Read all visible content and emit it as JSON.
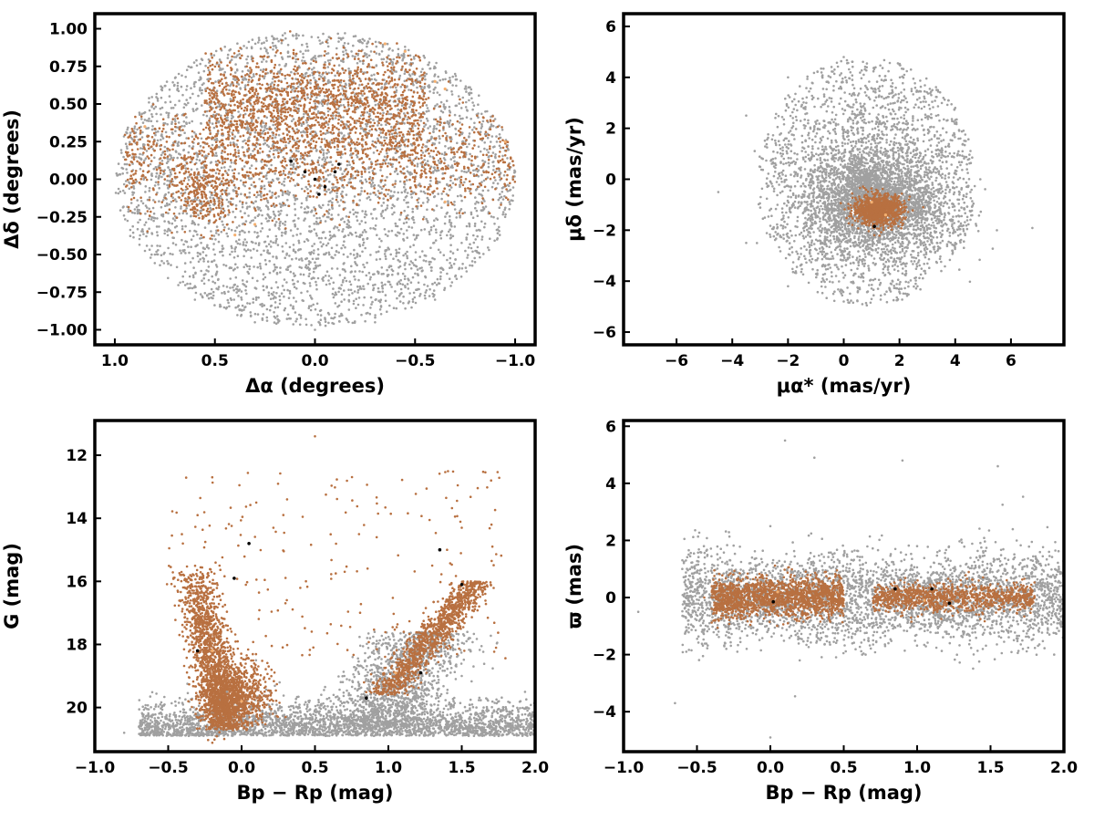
{
  "chart_data": [
    {
      "id": "sky-positions",
      "type": "scatter",
      "xlabel": "Δα (degrees)",
      "ylabel": "Δδ (degrees)",
      "xlim": [
        1.1,
        -1.1
      ],
      "ylim": [
        -1.1,
        1.1
      ],
      "x_ticks": [
        1.0,
        0.5,
        0.0,
        -0.5,
        -1.0
      ],
      "x_tick_labels": [
        "1.0",
        "0.5",
        "0.0",
        "−0.5",
        "−1.0"
      ],
      "y_ticks": [
        1.0,
        0.75,
        0.5,
        0.25,
        0.0,
        -0.25,
        -0.5,
        -0.75,
        -1.0
      ],
      "y_tick_labels": [
        "1.00",
        "0.75",
        "0.50",
        "0.25",
        "0.00",
        "−0.25",
        "−0.50",
        "−0.75",
        "−1.00"
      ],
      "grid": false,
      "legend": false,
      "series": [
        {
          "color": "#a0a0a0",
          "points": [
            [
              0.95,
              0.1
            ],
            [
              0.9,
              -0.2
            ],
            [
              0.8,
              -0.5
            ],
            [
              0.6,
              -0.8
            ],
            [
              0.3,
              -0.95
            ],
            [
              0.0,
              -1.0
            ],
            [
              -0.3,
              -0.95
            ],
            [
              -0.6,
              -0.8
            ],
            [
              -0.8,
              -0.55
            ],
            [
              -0.95,
              -0.25
            ],
            [
              -1.0,
              0.05
            ],
            [
              -0.9,
              0.4
            ],
            [
              -0.7,
              0.7
            ],
            [
              -0.45,
              0.88
            ],
            [
              -0.15,
              0.97
            ],
            [
              0.15,
              0.97
            ],
            [
              0.45,
              0.88
            ],
            [
              0.75,
              0.62
            ],
            [
              0.9,
              0.35
            ],
            [
              0.5,
              -0.5
            ],
            [
              0.2,
              -0.6
            ],
            [
              -0.2,
              -0.55
            ],
            [
              -0.5,
              -0.4
            ],
            [
              0.6,
              -0.3
            ],
            [
              -0.7,
              -0.2
            ],
            [
              0.1,
              -0.3
            ],
            [
              -0.3,
              -0.7
            ],
            [
              0.4,
              -0.7
            ],
            [
              0.7,
              0.4
            ],
            [
              -0.85,
              0.3
            ]
          ]
        },
        {
          "color": "#b87040",
          "points": [
            [
              0.85,
              0.2
            ],
            [
              0.7,
              0.25
            ],
            [
              0.6,
              0.1
            ],
            [
              0.55,
              -0.1
            ],
            [
              0.45,
              0.4
            ],
            [
              0.3,
              0.5
            ],
            [
              0.2,
              0.65
            ],
            [
              0.1,
              0.75
            ],
            [
              0.0,
              0.6
            ],
            [
              -0.1,
              0.45
            ],
            [
              -0.2,
              0.7
            ],
            [
              -0.3,
              0.55
            ],
            [
              -0.4,
              0.35
            ],
            [
              -0.5,
              0.2
            ],
            [
              -0.6,
              0.1
            ],
            [
              -0.7,
              0.0
            ],
            [
              -0.85,
              -0.05
            ],
            [
              -0.95,
              0.05
            ],
            [
              0.25,
              0.3
            ],
            [
              0.1,
              0.15
            ],
            [
              -0.15,
              0.2
            ],
            [
              -0.25,
              0.05
            ],
            [
              0.35,
              -0.3
            ],
            [
              0.65,
              -0.35
            ],
            [
              0.5,
              0.2
            ],
            [
              -0.05,
              0.85
            ]
          ]
        },
        {
          "color": "#f5b070",
          "points": [
            [
              -0.35,
              0.9
            ],
            [
              -0.45,
              0.85
            ],
            [
              -0.6,
              0.65
            ],
            [
              -0.65,
              0.6
            ],
            [
              -0.95,
              0.25
            ],
            [
              0.85,
              0.35
            ],
            [
              -0.65,
              -0.15
            ],
            [
              0.4,
              -0.37
            ],
            [
              0.3,
              -0.3
            ]
          ]
        },
        {
          "color": "#000000",
          "points": [
            [
              0.12,
              0.12
            ],
            [
              0.05,
              0.05
            ],
            [
              0.0,
              0.0
            ],
            [
              -0.05,
              -0.05
            ],
            [
              -0.1,
              0.05
            ],
            [
              -0.02,
              -0.1
            ],
            [
              -0.12,
              0.1
            ]
          ]
        }
      ]
    },
    {
      "id": "proper-motions",
      "type": "scatter",
      "xlabel": "μα* (mas/yr)",
      "ylabel": "μδ (mas/yr)",
      "xlim": [
        -7.9,
        7.9
      ],
      "ylim": [
        -6.5,
        6.5
      ],
      "x_ticks": [
        -6,
        -4,
        -2,
        0,
        2,
        4,
        6
      ],
      "x_tick_labels": [
        "−6",
        "−4",
        "−2",
        "0",
        "2",
        "4",
        "6"
      ],
      "y_ticks": [
        6,
        4,
        2,
        0,
        -2,
        -4,
        -6
      ],
      "y_tick_labels": [
        "6",
        "4",
        "2",
        "0",
        "−2",
        "−4",
        "−6"
      ],
      "grid": false,
      "legend": false,
      "series": [
        {
          "color": "#a0a0a0",
          "points": [
            [
              -4.5,
              -0.5
            ],
            [
              -3.5,
              2.5
            ],
            [
              -2.0,
              4.0
            ],
            [
              0.0,
              4.8
            ],
            [
              2.0,
              4.5
            ],
            [
              4.0,
              2.8
            ],
            [
              4.9,
              0.0
            ],
            [
              4.0,
              -2.5
            ],
            [
              2.0,
              -4.3
            ],
            [
              0.0,
              -4.8
            ],
            [
              -2.0,
              -4.2
            ],
            [
              -3.5,
              -2.5
            ],
            [
              -1.0,
              -1.5
            ],
            [
              3.0,
              -1.0
            ],
            [
              2.5,
              0.5
            ],
            [
              -0.5,
              0.5
            ],
            [
              1.0,
              -3.0
            ],
            [
              -2.5,
              0.5
            ],
            [
              3.5,
              1.5
            ],
            [
              0.5,
              2.0
            ]
          ]
        },
        {
          "color": "#b87040",
          "points": [
            [
              1.2,
              -1.2
            ],
            [
              0.6,
              -1.0
            ],
            [
              1.8,
              -0.8
            ],
            [
              1.4,
              -1.6
            ],
            [
              0.9,
              -1.5
            ],
            [
              1.6,
              -0.6
            ],
            [
              2.1,
              -1.3
            ],
            [
              0.4,
              -1.3
            ]
          ]
        },
        {
          "color": "#f5b070",
          "points": [
            [
              1.0,
              -0.9
            ],
            [
              1.5,
              -1.4
            ]
          ]
        },
        {
          "color": "#000000",
          "points": [
            [
              1.1,
              -1.85
            ]
          ]
        }
      ]
    },
    {
      "id": "colour-magnitude",
      "type": "scatter",
      "xlabel": "Bp − Rp (mag)",
      "ylabel": "G (mag)",
      "xlim": [
        -1.0,
        2.0
      ],
      "ylim": [
        21.4,
        10.9
      ],
      "x_ticks": [
        -1.0,
        -0.5,
        0.0,
        0.5,
        1.0,
        1.5,
        2.0
      ],
      "x_tick_labels": [
        "−1.0",
        "−0.5",
        "0.0",
        "0.5",
        "1.0",
        "1.5",
        "2.0"
      ],
      "y_ticks": [
        20,
        18,
        16,
        14,
        12
      ],
      "y_tick_labels": [
        "20",
        "18",
        "16",
        "14",
        "12"
      ],
      "grid": false,
      "legend": false,
      "series": [
        {
          "color": "#a0a0a0",
          "points": [
            [
              -0.8,
              20.8
            ],
            [
              -0.5,
              20.8
            ],
            [
              0.0,
              20.8
            ],
            [
              0.3,
              20.6
            ],
            [
              0.6,
              20.8
            ],
            [
              1.0,
              20.8
            ],
            [
              1.4,
              20.6
            ],
            [
              1.8,
              20.3
            ],
            [
              1.9,
              19.8
            ],
            [
              1.5,
              19.0
            ],
            [
              1.2,
              18.5
            ],
            [
              0.9,
              18.2
            ],
            [
              0.7,
              19.0
            ],
            [
              0.2,
              20.2
            ],
            [
              -0.1,
              19.5
            ],
            [
              1.6,
              20.0
            ],
            [
              1.3,
              17.9
            ]
          ]
        },
        {
          "color": "#b87040",
          "points": [
            [
              -0.1,
              20.5
            ],
            [
              -0.2,
              19.5
            ],
            [
              -0.25,
              18.5
            ],
            [
              -0.28,
              17.5
            ],
            [
              -0.3,
              16.5
            ],
            [
              -0.35,
              15.8
            ],
            [
              -0.4,
              14.8
            ],
            [
              -0.15,
              15.5
            ],
            [
              0.0,
              20.1
            ],
            [
              0.3,
              20.3
            ],
            [
              0.9,
              19.4
            ],
            [
              1.05,
              19.0
            ],
            [
              1.2,
              18.5
            ],
            [
              1.3,
              18.0
            ],
            [
              1.45,
              17.3
            ],
            [
              1.55,
              16.8
            ],
            [
              1.65,
              16.2
            ],
            [
              1.4,
              15.0
            ],
            [
              1.5,
              14.3
            ],
            [
              1.7,
              12.8
            ],
            [
              0.1,
              13.5
            ],
            [
              -0.2,
              12.7
            ],
            [
              0.8,
              14.5
            ],
            [
              -0.3,
              13.9
            ],
            [
              0.5,
              11.4
            ]
          ]
        },
        {
          "color": "#f5b070",
          "points": [
            [
              0.0,
              19.8
            ],
            [
              1.05,
              18.9
            ],
            [
              -0.2,
              18.2
            ]
          ]
        },
        {
          "color": "#000000",
          "points": [
            [
              -0.3,
              18.2
            ],
            [
              0.85,
              19.7
            ],
            [
              1.22,
              18.9
            ],
            [
              -0.05,
              15.9
            ],
            [
              0.05,
              14.8
            ],
            [
              1.35,
              15.0
            ],
            [
              1.5,
              16.1
            ]
          ]
        }
      ]
    },
    {
      "id": "colour-parallax",
      "type": "scatter",
      "xlabel": "Bp − Rp (mag)",
      "ylabel": "ϖ (mas)",
      "xlim": [
        -1.0,
        2.0
      ],
      "ylim": [
        -5.4,
        6.2
      ],
      "x_ticks": [
        -1.0,
        -0.5,
        0.0,
        0.5,
        1.0,
        1.5,
        2.0
      ],
      "x_tick_labels": [
        "−1.0",
        "−0.5",
        "0.0",
        "0.5",
        "1.0",
        "1.5",
        "2.0"
      ],
      "y_ticks": [
        6,
        4,
        2,
        0,
        -2,
        -4
      ],
      "y_tick_labels": [
        "6",
        "4",
        "2",
        "0",
        "−2",
        "−4"
      ],
      "grid": false,
      "legend": false,
      "series": [
        {
          "color": "#a0a0a0",
          "points": [
            [
              -0.9,
              -0.5
            ],
            [
              -0.6,
              1.0
            ],
            [
              -0.3,
              -1.8
            ],
            [
              0.0,
              2.5
            ],
            [
              0.2,
              -2.2
            ],
            [
              0.5,
              1.5
            ],
            [
              0.7,
              -1.5
            ],
            [
              1.0,
              1.8
            ],
            [
              1.2,
              -1.2
            ],
            [
              1.5,
              1.0
            ],
            [
              1.8,
              -0.8
            ],
            [
              1.95,
              0.8
            ],
            [
              0.1,
              5.5
            ],
            [
              0.3,
              4.9
            ],
            [
              0.0,
              -4.9
            ],
            [
              0.9,
              4.8
            ],
            [
              1.55,
              4.6
            ],
            [
              -0.65,
              -3.7
            ]
          ]
        },
        {
          "color": "#b87040",
          "points": [
            [
              -0.45,
              0.0
            ],
            [
              -0.3,
              0.3
            ],
            [
              -0.15,
              -0.4
            ],
            [
              0.0,
              0.5
            ],
            [
              0.15,
              -0.6
            ],
            [
              0.3,
              0.2
            ],
            [
              0.5,
              -0.3
            ],
            [
              0.8,
              0.1
            ],
            [
              1.0,
              0.0
            ],
            [
              1.2,
              -0.2
            ],
            [
              1.4,
              0.1
            ],
            [
              1.6,
              0.0
            ],
            [
              1.8,
              0.0
            ]
          ]
        },
        {
          "color": "#f5b070",
          "points": [
            [
              0.05,
              0.2
            ],
            [
              1.05,
              -0.1
            ]
          ]
        },
        {
          "color": "#000000",
          "points": [
            [
              0.02,
              -0.15
            ],
            [
              0.85,
              0.3
            ],
            [
              1.1,
              0.3
            ],
            [
              1.22,
              -0.2
            ]
          ]
        }
      ]
    }
  ]
}
